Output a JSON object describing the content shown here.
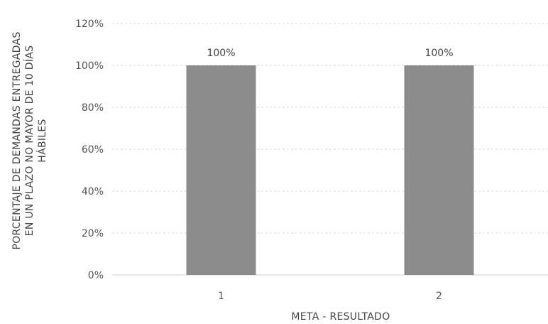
{
  "chart_data": {
    "type": "bar",
    "categories": [
      "1",
      "2"
    ],
    "values": [
      100,
      100
    ],
    "data_labels": [
      "100%",
      "100%"
    ],
    "y_ticks": [
      "0%",
      "20%",
      "40%",
      "60%",
      "80%",
      "100%",
      "120%"
    ],
    "ylim": [
      0,
      120
    ],
    "xlabel": "META - RESULTADO",
    "ylabel_lines": [
      "PORCENTAJE DE DEMANDAS ENTREGADAS",
      "EN UN PLAZO NO MAYOR DE 10 DÍAS",
      "HÁBILES"
    ],
    "grid": true,
    "bar_color": "#8c8c8c"
  }
}
